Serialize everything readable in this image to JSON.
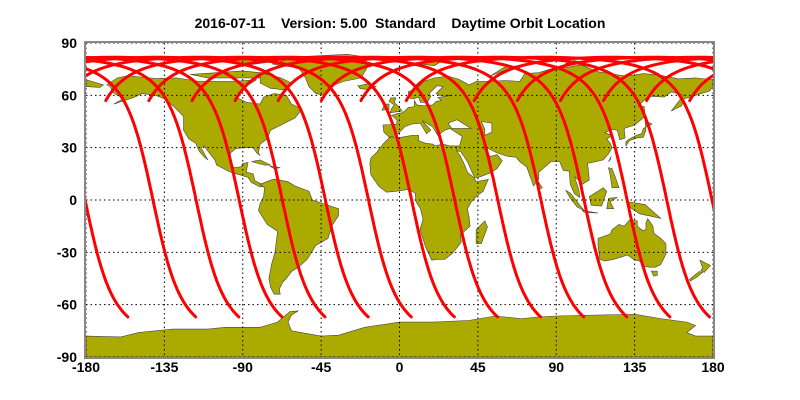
{
  "title": "2016-07-11    Version: 5.00  Standard    Daytime Orbit Location",
  "map": {
    "projection": "equirectangular",
    "lon_range": [
      -180,
      180
    ],
    "lat_range": [
      -90,
      90
    ],
    "grid": true,
    "x_ticks": [
      "-180",
      "-135",
      "-90",
      "-45",
      "0",
      "45",
      "90",
      "135",
      "180"
    ],
    "y_ticks": [
      "90",
      "60",
      "30",
      "0",
      "-30",
      "-60",
      "-90"
    ],
    "colors": {
      "land": "#aaaa00",
      "track": "#ff0000",
      "grid": "#000000"
    }
  },
  "orbit": {
    "segment_start_lat": -67,
    "segment_end_lat": 57,
    "segment_start_lons": [
      -156,
      -117,
      -92.25,
      -67.5,
      -42.75,
      -18,
      6.75,
      31.5,
      56.25,
      81,
      105.75,
      130.5,
      155.25,
      178
    ]
  }
}
